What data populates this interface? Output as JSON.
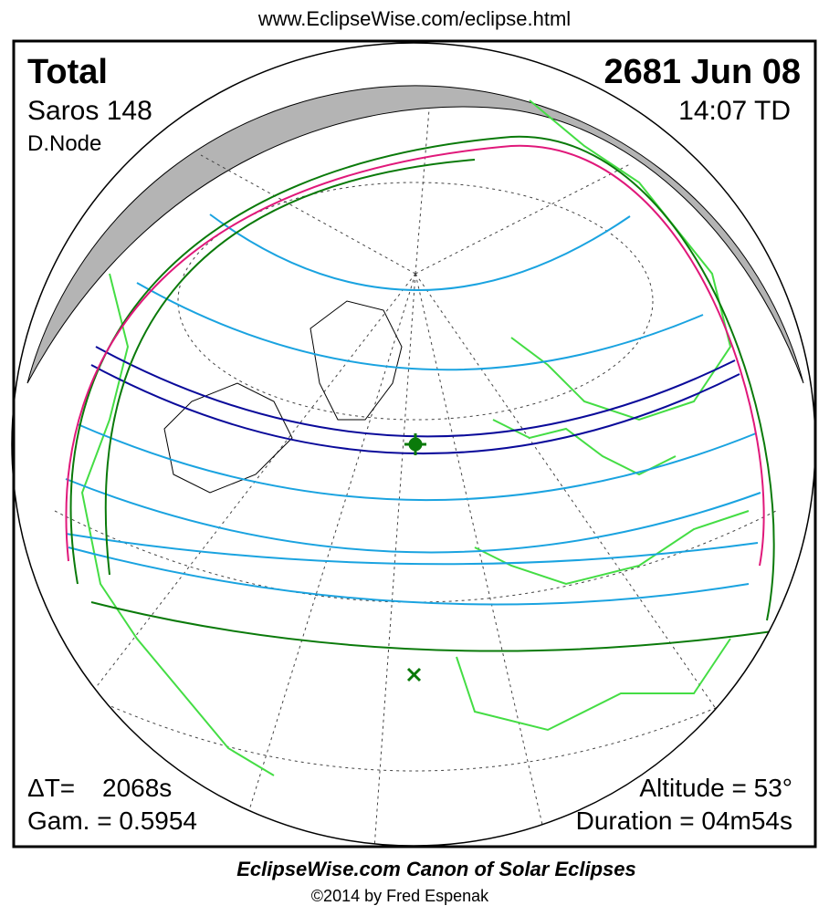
{
  "header": {
    "url": "www.EclipseWise.com/eclipse.html"
  },
  "map": {
    "eclipse_type": "Total",
    "date": "2681 Jun 08",
    "saros": "Saros 148",
    "time": "14:07 TD",
    "node": "D.Node",
    "delta_t_label": "ΔT=",
    "delta_t": "2068s",
    "gamma": "Gam. = 0.5954",
    "altitude": "Altitude = 53°",
    "duration": "Duration = 04m54s"
  },
  "footer": {
    "title": "EclipseWise.com Canon of Solar Eclipses",
    "copyright": "©2014 by Fred Espenak"
  }
}
